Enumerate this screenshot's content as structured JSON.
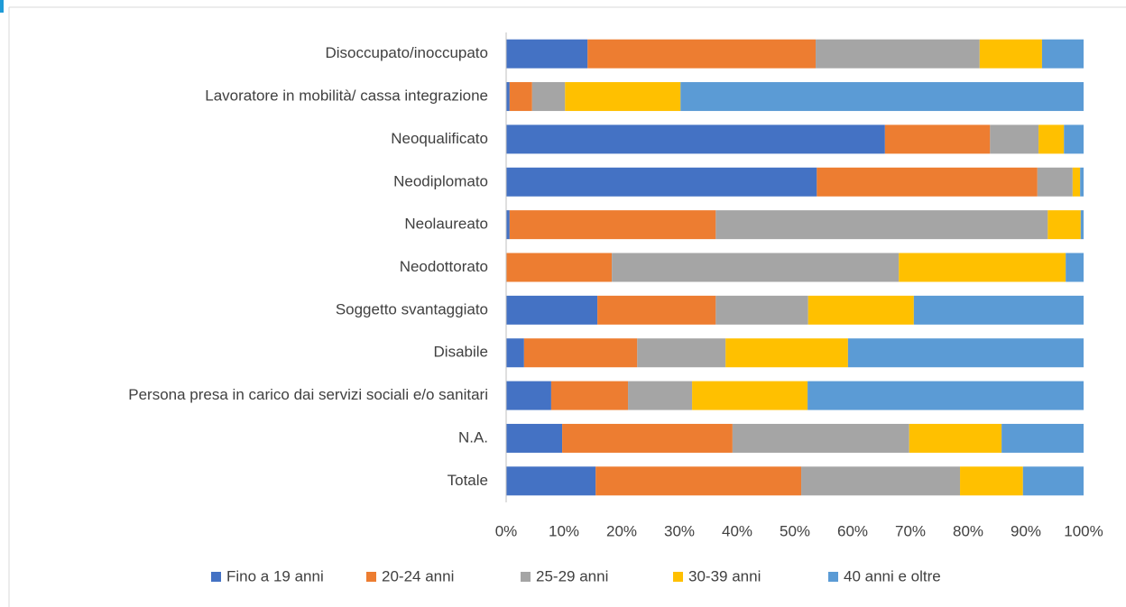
{
  "chart_data": {
    "type": "stacked-barh",
    "categories": [
      "Disoccupato/inoccupato",
      "Lavoratore in mobilità/ cassa integrazione",
      "Neoqualificato",
      "Neodiplomato",
      "Neolaureato",
      "Neodottorato",
      "Soggetto svantaggiato",
      "Disabile",
      "Persona presa in carico dai servizi sociali e/o sanitari",
      "N.A.",
      "Totale"
    ],
    "series": [
      {
        "name": "Fino a 19 anni",
        "color": "#4472c4",
        "values": [
          14.1,
          0.6,
          65.6,
          53.8,
          0.6,
          0,
          15.8,
          3.1,
          7.8,
          9.7,
          15.5
        ]
      },
      {
        "name": "20-24 anni",
        "color": "#ed7d31",
        "values": [
          39.5,
          3.9,
          18.2,
          38.2,
          35.7,
          18.3,
          20.5,
          19.6,
          13.3,
          29.5,
          35.6
        ]
      },
      {
        "name": "25-29 anni",
        "color": "#a5a5a5",
        "values": [
          28.4,
          5.7,
          8.4,
          6.1,
          57.5,
          49.7,
          16.0,
          15.3,
          11.1,
          30.6,
          27.5
        ]
      },
      {
        "name": "30-39 anni",
        "color": "#ffc000",
        "values": [
          10.8,
          20.0,
          4.4,
          1.3,
          5.7,
          28.9,
          18.3,
          21.2,
          20.0,
          16.0,
          10.9
        ]
      },
      {
        "name": "40 anni e oltre",
        "color": "#5b9bd5",
        "values": [
          7.2,
          69.8,
          3.4,
          0.6,
          0.5,
          3.1,
          29.4,
          40.8,
          47.8,
          14.2,
          10.5
        ]
      }
    ],
    "xlim": [
      0,
      100
    ],
    "xticks": [
      {
        "value": 0,
        "label": "0%"
      },
      {
        "value": 10,
        "label": "10%"
      },
      {
        "value": 20,
        "label": "20%"
      },
      {
        "value": 30,
        "label": "30%"
      },
      {
        "value": 40,
        "label": "40%"
      },
      {
        "value": 50,
        "label": "50%"
      },
      {
        "value": 60,
        "label": "60%"
      },
      {
        "value": 70,
        "label": "70%"
      },
      {
        "value": 80,
        "label": "80%"
      },
      {
        "value": 90,
        "label": "90%"
      },
      {
        "value": 100,
        "label": "100%"
      }
    ],
    "grid": false,
    "legend": "bottom"
  }
}
